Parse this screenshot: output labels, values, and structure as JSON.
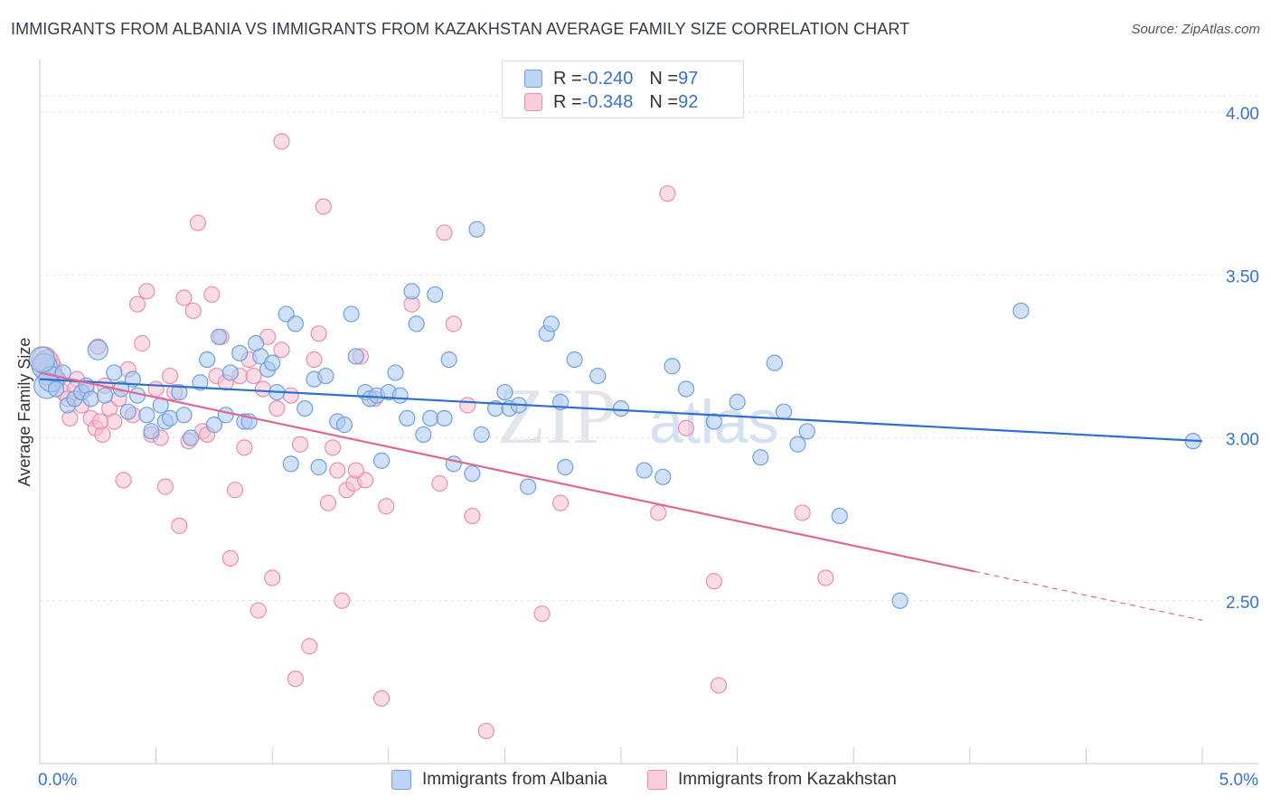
{
  "title": "IMMIGRANTS FROM ALBANIA VS IMMIGRANTS FROM KAZAKHSTAN AVERAGE FAMILY SIZE CORRELATION CHART",
  "source": "Source: ZipAtlas.com",
  "watermark": {
    "zip": "ZIP",
    "atlas": "atlas"
  },
  "colors": {
    "albania_fill": "#a9c8f0",
    "albania_stroke": "#6fa0de",
    "albania_line": "#2f6fcc",
    "kazakhstan_fill": "#f5bfd1",
    "kazakhstan_stroke": "#e98fae",
    "kazakhstan_line": "#e06794",
    "tick_label": "#3a72c8",
    "grid": "#dde3ea"
  },
  "legend": {
    "albania": {
      "r_label": "R = ",
      "r_value": "-0.240",
      "n_label": "N = ",
      "n_value": "97"
    },
    "kazakhstan": {
      "r_label": "R = ",
      "r_value": "-0.348",
      "n_label": "N = ",
      "n_value": "92"
    }
  },
  "chart_data": {
    "type": "scatter",
    "xlabel": "",
    "ylabel": "Average Family Size",
    "xlim": [
      0,
      5
    ],
    "ylim": [
      2.0,
      4.15
    ],
    "x_tick_labels": [
      {
        "value": 0,
        "label": "0.0%"
      },
      {
        "value": 5,
        "label": "5.0%"
      }
    ],
    "y_ticks": [
      {
        "value": 2.5,
        "label": "2.50"
      },
      {
        "value": 3.0,
        "label": "3.00"
      },
      {
        "value": 3.5,
        "label": "3.50"
      },
      {
        "value": 4.0,
        "label": "4.00"
      }
    ],
    "grid": true,
    "legend_position": "top-center",
    "series": [
      {
        "name": "Immigrants from Albania",
        "trend": {
          "x": [
            0,
            5
          ],
          "y": [
            3.18,
            2.99
          ]
        },
        "points": [
          [
            0.02,
            3.22
          ],
          [
            0.03,
            3.16
          ],
          [
            0.05,
            3.18
          ],
          [
            0.07,
            3.15
          ],
          [
            0.1,
            3.2
          ],
          [
            0.12,
            3.1
          ],
          [
            0.15,
            3.12
          ],
          [
            0.18,
            3.14
          ],
          [
            0.2,
            3.16
          ],
          [
            0.22,
            3.12
          ],
          [
            0.25,
            3.27
          ],
          [
            0.28,
            3.13
          ],
          [
            0.32,
            3.2
          ],
          [
            0.35,
            3.15
          ],
          [
            0.38,
            3.08
          ],
          [
            0.4,
            3.18
          ],
          [
            0.42,
            3.13
          ],
          [
            0.46,
            3.07
          ],
          [
            0.48,
            3.02
          ],
          [
            0.52,
            3.1
          ],
          [
            0.54,
            3.05
          ],
          [
            0.56,
            3.06
          ],
          [
            0.6,
            3.14
          ],
          [
            0.62,
            3.07
          ],
          [
            0.65,
            3.0
          ],
          [
            0.69,
            3.17
          ],
          [
            0.72,
            3.24
          ],
          [
            0.75,
            3.04
          ],
          [
            0.77,
            3.31
          ],
          [
            0.8,
            3.07
          ],
          [
            0.82,
            3.2
          ],
          [
            0.86,
            3.26
          ],
          [
            0.88,
            3.05
          ],
          [
            0.9,
            3.05
          ],
          [
            0.93,
            3.29
          ],
          [
            0.95,
            3.25
          ],
          [
            0.98,
            3.21
          ],
          [
            1.0,
            3.23
          ],
          [
            1.02,
            3.14
          ],
          [
            1.06,
            3.38
          ],
          [
            1.08,
            2.92
          ],
          [
            1.1,
            3.35
          ],
          [
            1.14,
            3.09
          ],
          [
            1.18,
            3.18
          ],
          [
            1.2,
            2.91
          ],
          [
            1.23,
            3.19
          ],
          [
            1.28,
            3.05
          ],
          [
            1.31,
            3.04
          ],
          [
            1.34,
            3.38
          ],
          [
            1.36,
            3.25
          ],
          [
            1.4,
            3.14
          ],
          [
            1.42,
            3.12
          ],
          [
            1.45,
            3.13
          ],
          [
            1.47,
            2.93
          ],
          [
            1.5,
            3.14
          ],
          [
            1.53,
            3.2
          ],
          [
            1.55,
            3.13
          ],
          [
            1.58,
            3.06
          ],
          [
            1.6,
            3.45
          ],
          [
            1.62,
            3.35
          ],
          [
            1.65,
            3.01
          ],
          [
            1.68,
            3.06
          ],
          [
            1.7,
            3.44
          ],
          [
            1.74,
            3.06
          ],
          [
            1.76,
            3.24
          ],
          [
            1.78,
            2.92
          ],
          [
            1.86,
            2.89
          ],
          [
            1.88,
            3.64
          ],
          [
            1.9,
            3.01
          ],
          [
            1.96,
            3.09
          ],
          [
            2.0,
            3.14
          ],
          [
            2.02,
            3.09
          ],
          [
            2.06,
            3.1
          ],
          [
            2.1,
            2.85
          ],
          [
            2.18,
            3.32
          ],
          [
            2.2,
            3.35
          ],
          [
            2.24,
            3.11
          ],
          [
            2.26,
            2.91
          ],
          [
            2.3,
            3.24
          ],
          [
            2.4,
            3.19
          ],
          [
            2.5,
            3.09
          ],
          [
            2.6,
            2.9
          ],
          [
            2.68,
            2.88
          ],
          [
            2.72,
            3.22
          ],
          [
            2.78,
            3.15
          ],
          [
            2.9,
            3.05
          ],
          [
            3.0,
            3.11
          ],
          [
            3.1,
            2.94
          ],
          [
            3.16,
            3.23
          ],
          [
            3.2,
            3.08
          ],
          [
            3.26,
            2.98
          ],
          [
            3.3,
            3.02
          ],
          [
            3.44,
            2.76
          ],
          [
            3.7,
            2.5
          ],
          [
            4.22,
            3.39
          ],
          [
            4.96,
            2.99
          ],
          [
            0.01,
            3.24
          ]
        ]
      },
      {
        "name": "Immigrants from Kazakhstan",
        "trend": {
          "x": [
            0,
            4.02
          ],
          "y": [
            3.2,
            2.59
          ]
        },
        "trend_dashed": {
          "x": [
            4.02,
            5
          ],
          "y": [
            2.59,
            2.44
          ]
        },
        "points": [
          [
            0.02,
            3.24
          ],
          [
            0.04,
            3.2
          ],
          [
            0.06,
            3.22
          ],
          [
            0.08,
            3.18
          ],
          [
            0.1,
            3.14
          ],
          [
            0.13,
            3.06
          ],
          [
            0.16,
            3.18
          ],
          [
            0.18,
            3.1
          ],
          [
            0.2,
            3.15
          ],
          [
            0.22,
            3.06
          ],
          [
            0.24,
            3.03
          ],
          [
            0.25,
            3.28
          ],
          [
            0.27,
            3.01
          ],
          [
            0.28,
            3.16
          ],
          [
            0.3,
            3.09
          ],
          [
            0.32,
            3.05
          ],
          [
            0.34,
            3.12
          ],
          [
            0.36,
            2.87
          ],
          [
            0.38,
            3.21
          ],
          [
            0.4,
            3.07
          ],
          [
            0.42,
            3.41
          ],
          [
            0.44,
            3.29
          ],
          [
            0.46,
            3.45
          ],
          [
            0.48,
            3.01
          ],
          [
            0.5,
            3.15
          ],
          [
            0.52,
            3.0
          ],
          [
            0.54,
            2.85
          ],
          [
            0.56,
            3.19
          ],
          [
            0.58,
            3.14
          ],
          [
            0.6,
            2.73
          ],
          [
            0.62,
            3.43
          ],
          [
            0.64,
            2.99
          ],
          [
            0.66,
            3.39
          ],
          [
            0.68,
            3.66
          ],
          [
            0.7,
            3.02
          ],
          [
            0.72,
            3.01
          ],
          [
            0.74,
            3.44
          ],
          [
            0.76,
            3.19
          ],
          [
            0.78,
            3.31
          ],
          [
            0.8,
            3.17
          ],
          [
            0.82,
            2.63
          ],
          [
            0.84,
            2.84
          ],
          [
            0.86,
            3.19
          ],
          [
            0.88,
            2.97
          ],
          [
            0.9,
            3.24
          ],
          [
            0.92,
            3.19
          ],
          [
            0.94,
            2.47
          ],
          [
            0.96,
            3.15
          ],
          [
            0.98,
            3.31
          ],
          [
            1.0,
            2.57
          ],
          [
            1.02,
            3.09
          ],
          [
            1.04,
            3.27
          ],
          [
            1.08,
            3.13
          ],
          [
            1.1,
            2.26
          ],
          [
            1.12,
            2.98
          ],
          [
            1.16,
            2.36
          ],
          [
            1.18,
            3.24
          ],
          [
            1.2,
            3.32
          ],
          [
            1.22,
            3.71
          ],
          [
            1.24,
            2.8
          ],
          [
            1.26,
            2.97
          ],
          [
            1.28,
            2.9
          ],
          [
            1.3,
            2.5
          ],
          [
            1.32,
            2.84
          ],
          [
            1.35,
            2.86
          ],
          [
            1.38,
            3.25
          ],
          [
            1.4,
            2.87
          ],
          [
            1.44,
            3.12
          ],
          [
            1.47,
            2.2
          ],
          [
            1.49,
            2.79
          ],
          [
            1.6,
            3.41
          ],
          [
            1.72,
            2.86
          ],
          [
            1.74,
            3.63
          ],
          [
            1.78,
            3.35
          ],
          [
            1.84,
            3.1
          ],
          [
            1.86,
            2.76
          ],
          [
            1.92,
            2.1
          ],
          [
            2.16,
            2.46
          ],
          [
            2.24,
            2.8
          ],
          [
            2.66,
            2.77
          ],
          [
            2.7,
            3.75
          ],
          [
            2.78,
            3.03
          ],
          [
            2.9,
            2.56
          ],
          [
            2.92,
            2.24
          ],
          [
            3.28,
            2.77
          ],
          [
            3.38,
            2.57
          ],
          [
            1.36,
            2.9
          ],
          [
            0.15,
            3.15
          ],
          [
            0.26,
            3.05
          ],
          [
            0.12,
            3.12
          ],
          [
            0.03,
            3.23
          ],
          [
            1.04,
            3.91
          ]
        ]
      }
    ]
  }
}
